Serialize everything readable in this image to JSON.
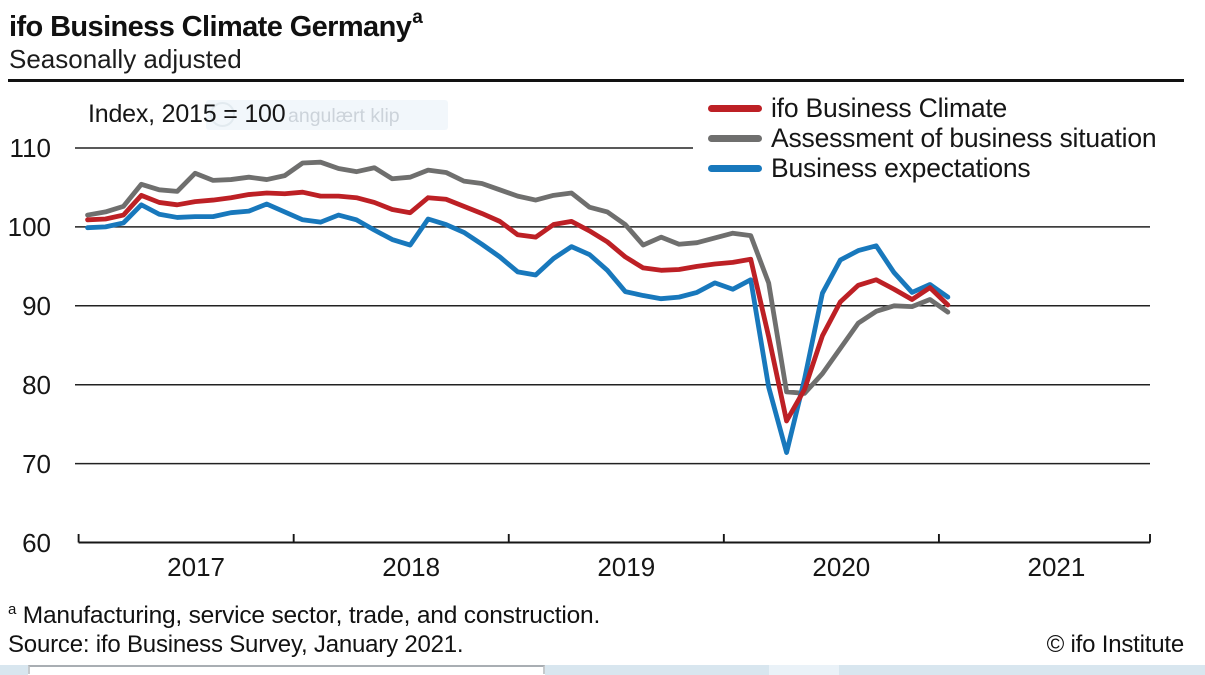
{
  "header": {
    "title": "ifo Business Climate Germany",
    "title_sup": "a",
    "subtitle": "Seasonally adjusted"
  },
  "chart_data": {
    "type": "line",
    "title": "ifo Business Climate Germany",
    "subtitle": "Seasonally adjusted",
    "index_label": "Index, 2015 = 100",
    "ylabel": "Index, 2015 = 100",
    "xlabel": "",
    "x_start": "2017-01",
    "x_end": "2021-01",
    "x_frequency": "monthly",
    "x_years": [
      "2017",
      "2018",
      "2019",
      "2020",
      "2021"
    ],
    "ylim": [
      60,
      112.5
    ],
    "yticks": [
      110,
      100,
      90,
      80,
      70,
      60
    ],
    "grid": "horizontal",
    "legend_position": "top-right",
    "series": [
      {
        "name": "ifo Business Climate",
        "color": "#bd2025",
        "values": [
          100.9,
          101.0,
          101.5,
          104.0,
          103.1,
          102.8,
          103.2,
          103.4,
          103.7,
          104.1,
          104.3,
          104.2,
          104.4,
          103.9,
          103.9,
          103.7,
          103.1,
          102.2,
          101.8,
          103.7,
          103.5,
          102.6,
          101.7,
          100.7,
          99.0,
          98.7,
          100.3,
          100.7,
          99.5,
          98.1,
          96.2,
          94.8,
          94.5,
          94.6,
          95.0,
          95.3,
          95.5,
          95.9,
          86.1,
          75.4,
          79.4,
          86.2,
          90.5,
          92.6,
          93.3,
          92.1,
          90.8,
          92.3,
          90.1
        ]
      },
      {
        "name": "Assessment of business situation",
        "color": "#6f6f6e",
        "values": [
          101.5,
          101.9,
          102.6,
          105.4,
          104.7,
          104.5,
          106.8,
          105.9,
          106.0,
          106.3,
          106.0,
          106.5,
          108.1,
          108.2,
          107.4,
          107.0,
          107.5,
          106.1,
          106.3,
          107.2,
          106.9,
          105.8,
          105.5,
          104.7,
          103.9,
          103.4,
          104.0,
          104.3,
          102.5,
          101.9,
          100.3,
          97.7,
          98.7,
          97.8,
          98.0,
          98.6,
          99.2,
          98.9,
          92.9,
          79.1,
          78.9,
          81.4,
          84.6,
          87.8,
          89.3,
          90.0,
          89.9,
          90.8,
          89.2
        ]
      },
      {
        "name": "Business expectations",
        "color": "#1878bc",
        "values": [
          99.9,
          100.0,
          100.5,
          102.8,
          101.6,
          101.2,
          101.3,
          101.3,
          101.8,
          102.0,
          102.9,
          101.9,
          100.9,
          100.6,
          101.5,
          100.9,
          99.6,
          98.4,
          97.7,
          101.0,
          100.3,
          99.3,
          97.8,
          96.2,
          94.3,
          93.9,
          96.0,
          97.5,
          96.5,
          94.5,
          91.8,
          91.3,
          90.9,
          91.1,
          91.7,
          92.9,
          92.1,
          93.3,
          79.7,
          71.4,
          80.7,
          91.6,
          95.8,
          97.0,
          97.6,
          94.2,
          91.7,
          92.7,
          91.1
        ]
      }
    ]
  },
  "footnotes": {
    "marker": "a",
    "note": "Manufacturing, service sector, trade, and construction.",
    "source": "Source: ifo Business Survey, January 2021.",
    "copyright": "© ifo Institute"
  },
  "artifacts": {
    "snip_overlay_text": "angulært klip"
  }
}
